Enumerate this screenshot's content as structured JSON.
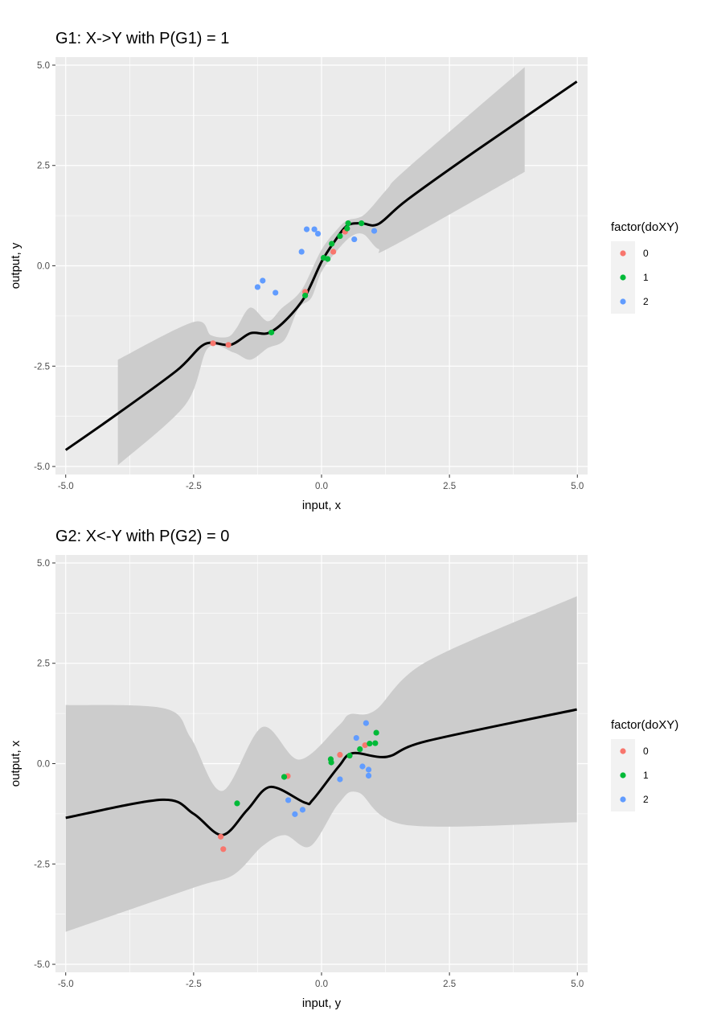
{
  "colors": {
    "panel_bg": "#EBEBEB",
    "grid": "#FFFFFF",
    "ribbon": "#CCCCCC",
    "line": "#000000",
    "level_0": "#F8766D",
    "level_1": "#00BA38",
    "level_2": "#619CFF"
  },
  "chart_data": [
    {
      "type": "scatter",
      "title": "G1: X->Y with P(G1) = 1",
      "xlabel": "input, x",
      "ylabel": "output, y",
      "xlim": [
        -5.2,
        5.2
      ],
      "ylim": [
        -5.2,
        5.2
      ],
      "xticks": [
        -5,
        -2.5,
        0,
        2.5,
        5
      ],
      "xtick_labels": [
        "-5.0",
        "-2.5",
        "0.0",
        "2.5",
        "5.0"
      ],
      "yticks": [
        -5,
        -2.5,
        0,
        2.5,
        5
      ],
      "ytick_labels": [
        "-5.0",
        "-2.5",
        "0.0",
        "2.5",
        "5.0"
      ],
      "grid": true,
      "legend": {
        "title": "factor(doXY)",
        "position": "right",
        "labels": [
          "0",
          "1",
          "2"
        ]
      },
      "points": [
        {
          "x": -2.12,
          "y": -1.93,
          "g": 0
        },
        {
          "x": -1.82,
          "y": -1.97,
          "g": 0
        },
        {
          "x": -0.32,
          "y": -0.65,
          "g": 0
        },
        {
          "x": 0.23,
          "y": 0.35,
          "g": 0
        },
        {
          "x": 0.46,
          "y": 0.85,
          "g": 0
        },
        {
          "x": -0.98,
          "y": -1.66,
          "g": 1
        },
        {
          "x": -0.32,
          "y": -0.74,
          "g": 1
        },
        {
          "x": 0.04,
          "y": 0.2,
          "g": 1
        },
        {
          "x": 0.12,
          "y": 0.17,
          "g": 1
        },
        {
          "x": 0.2,
          "y": 0.55,
          "g": 1
        },
        {
          "x": 0.36,
          "y": 0.74,
          "g": 1
        },
        {
          "x": 0.5,
          "y": 0.93,
          "g": 1
        },
        {
          "x": 0.52,
          "y": 1.06,
          "g": 1
        },
        {
          "x": 0.78,
          "y": 1.06,
          "g": 1
        },
        {
          "x": -0.29,
          "y": 0.91,
          "g": 2
        },
        {
          "x": -0.14,
          "y": 0.91,
          "g": 2
        },
        {
          "x": -0.07,
          "y": 0.8,
          "g": 2
        },
        {
          "x": -0.39,
          "y": 0.35,
          "g": 2
        },
        {
          "x": -1.15,
          "y": -0.37,
          "g": 2
        },
        {
          "x": -1.25,
          "y": -0.53,
          "g": 2
        },
        {
          "x": -0.9,
          "y": -0.67,
          "g": 2
        },
        {
          "x": 0.64,
          "y": 0.66,
          "g": 2
        },
        {
          "x": 1.03,
          "y": 0.87,
          "g": 2
        }
      ],
      "mean_line": [
        [
          -5,
          -4.59
        ],
        [
          -4,
          -3.7
        ],
        [
          -2.83,
          -2.61
        ],
        [
          -2.28,
          -1.95
        ],
        [
          -1.78,
          -1.97
        ],
        [
          -1.39,
          -1.68
        ],
        [
          -1.05,
          -1.68
        ],
        [
          -0.72,
          -1.38
        ],
        [
          -0.33,
          -0.78
        ],
        [
          0,
          0.1
        ],
        [
          0.25,
          0.6
        ],
        [
          0.5,
          1.0
        ],
        [
          0.78,
          1.06
        ],
        [
          1.11,
          1.04
        ],
        [
          1.66,
          1.63
        ],
        [
          3,
          2.85
        ],
        [
          4.99,
          4.59
        ]
      ],
      "ribbon_upper": [
        [
          -3.98,
          -2.34
        ],
        [
          -2.5,
          -1.4
        ],
        [
          -2.16,
          -1.73
        ],
        [
          -1.83,
          -1.77
        ],
        [
          -1.66,
          -1.55
        ],
        [
          -1.39,
          -1.04
        ],
        [
          -1.05,
          -1.38
        ],
        [
          -0.78,
          -1.06
        ],
        [
          -0.39,
          -0.6
        ],
        [
          0,
          0.4
        ],
        [
          0.3,
          0.9
        ],
        [
          0.5,
          1.13
        ],
        [
          0.83,
          1.27
        ],
        [
          1.28,
          1.91
        ],
        [
          1.66,
          2.41
        ],
        [
          3.97,
          4.95
        ]
      ],
      "ribbon_lower": [
        [
          -3.98,
          -4.97
        ],
        [
          -2.66,
          -3.46
        ],
        [
          -2.22,
          -2.05
        ],
        [
          -1.72,
          -2.16
        ],
        [
          -1.39,
          -2.34
        ],
        [
          -1.05,
          -2.05
        ],
        [
          -0.72,
          -1.84
        ],
        [
          -0.45,
          -1.06
        ],
        [
          -0.2,
          -0.8
        ],
        [
          0,
          -0.15
        ],
        [
          0.33,
          0.42
        ],
        [
          0.6,
          0.75
        ],
        [
          0.83,
          0.78
        ],
        [
          1.11,
          0.42
        ],
        [
          1.39,
          0.49
        ],
        [
          3.97,
          2.34
        ]
      ]
    },
    {
      "type": "scatter",
      "title": "G2: X<-Y with P(G2) = 0",
      "xlabel": "input, y",
      "ylabel": "output, x",
      "xlim": [
        -5.2,
        5.2
      ],
      "ylim": [
        -5.2,
        5.2
      ],
      "xticks": [
        -5,
        -2.5,
        0,
        2.5,
        5
      ],
      "xtick_labels": [
        "-5.0",
        "-2.5",
        "0.0",
        "2.5",
        "5.0"
      ],
      "yticks": [
        -5,
        -2.5,
        0,
        2.5,
        5
      ],
      "ytick_labels": [
        "-5.0",
        "-2.5",
        "0.0",
        "2.5",
        "5.0"
      ],
      "grid": true,
      "legend": {
        "title": "factor(doXY)",
        "position": "right",
        "labels": [
          "0",
          "1",
          "2"
        ]
      },
      "points": [
        {
          "x": -1.97,
          "y": -1.82,
          "g": 0
        },
        {
          "x": -1.92,
          "y": -2.13,
          "g": 0
        },
        {
          "x": -0.66,
          "y": -0.31,
          "g": 0
        },
        {
          "x": 0.36,
          "y": 0.22,
          "g": 0
        },
        {
          "x": 0.85,
          "y": 0.46,
          "g": 0
        },
        {
          "x": -1.65,
          "y": -0.99,
          "g": 1
        },
        {
          "x": -0.73,
          "y": -0.33,
          "g": 1
        },
        {
          "x": 0.18,
          "y": 0.11,
          "g": 1
        },
        {
          "x": 0.19,
          "y": 0.03,
          "g": 1
        },
        {
          "x": 0.55,
          "y": 0.2,
          "g": 1
        },
        {
          "x": 0.75,
          "y": 0.36,
          "g": 1
        },
        {
          "x": 0.94,
          "y": 0.5,
          "g": 1
        },
        {
          "x": 1.05,
          "y": 0.51,
          "g": 1
        },
        {
          "x": 1.07,
          "y": 0.77,
          "g": 1
        },
        {
          "x": 0.87,
          "y": 1.01,
          "g": 2
        },
        {
          "x": 0.68,
          "y": 0.64,
          "g": 2
        },
        {
          "x": 0.8,
          "y": -0.07,
          "g": 2
        },
        {
          "x": 0.92,
          "y": -0.15,
          "g": 2
        },
        {
          "x": 0.92,
          "y": -0.3,
          "g": 2
        },
        {
          "x": 0.36,
          "y": -0.39,
          "g": 2
        },
        {
          "x": -0.65,
          "y": -0.91,
          "g": 2
        },
        {
          "x": -0.37,
          "y": -1.15,
          "g": 2
        },
        {
          "x": -0.52,
          "y": -1.26,
          "g": 2
        }
      ],
      "mean_line": [
        [
          -5,
          -1.35
        ],
        [
          -3.11,
          -0.9
        ],
        [
          -2.5,
          -1.25
        ],
        [
          -1.94,
          -1.78
        ],
        [
          -1.45,
          -1.15
        ],
        [
          -1.0,
          -0.58
        ],
        [
          -0.33,
          -0.97
        ],
        [
          -0.17,
          -0.9
        ],
        [
          0.33,
          -0.08
        ],
        [
          0.61,
          0.26
        ],
        [
          1.28,
          0.17
        ],
        [
          2.05,
          0.56
        ],
        [
          4.99,
          1.35
        ]
      ],
      "ribbon_upper": [
        [
          -5,
          1.46
        ],
        [
          -3.05,
          1.37
        ],
        [
          -2.55,
          0.63
        ],
        [
          -1.94,
          -0.68
        ],
        [
          -1.16,
          0.91
        ],
        [
          -0.44,
          0.1
        ],
        [
          0.33,
          0.94
        ],
        [
          0.55,
          1.23
        ],
        [
          1.05,
          1.33
        ],
        [
          2.05,
          2.54
        ],
        [
          4.99,
          4.17
        ]
      ],
      "ribbon_lower": [
        [
          -5,
          -4.19
        ],
        [
          -2.5,
          -3.09
        ],
        [
          -1.72,
          -2.77
        ],
        [
          -1.16,
          -2.06
        ],
        [
          -0.72,
          -1.78
        ],
        [
          -0.22,
          -2.06
        ],
        [
          0.33,
          -1.0
        ],
        [
          0.72,
          -0.72
        ],
        [
          1.66,
          -1.53
        ],
        [
          4.99,
          -1.46
        ]
      ]
    }
  ]
}
